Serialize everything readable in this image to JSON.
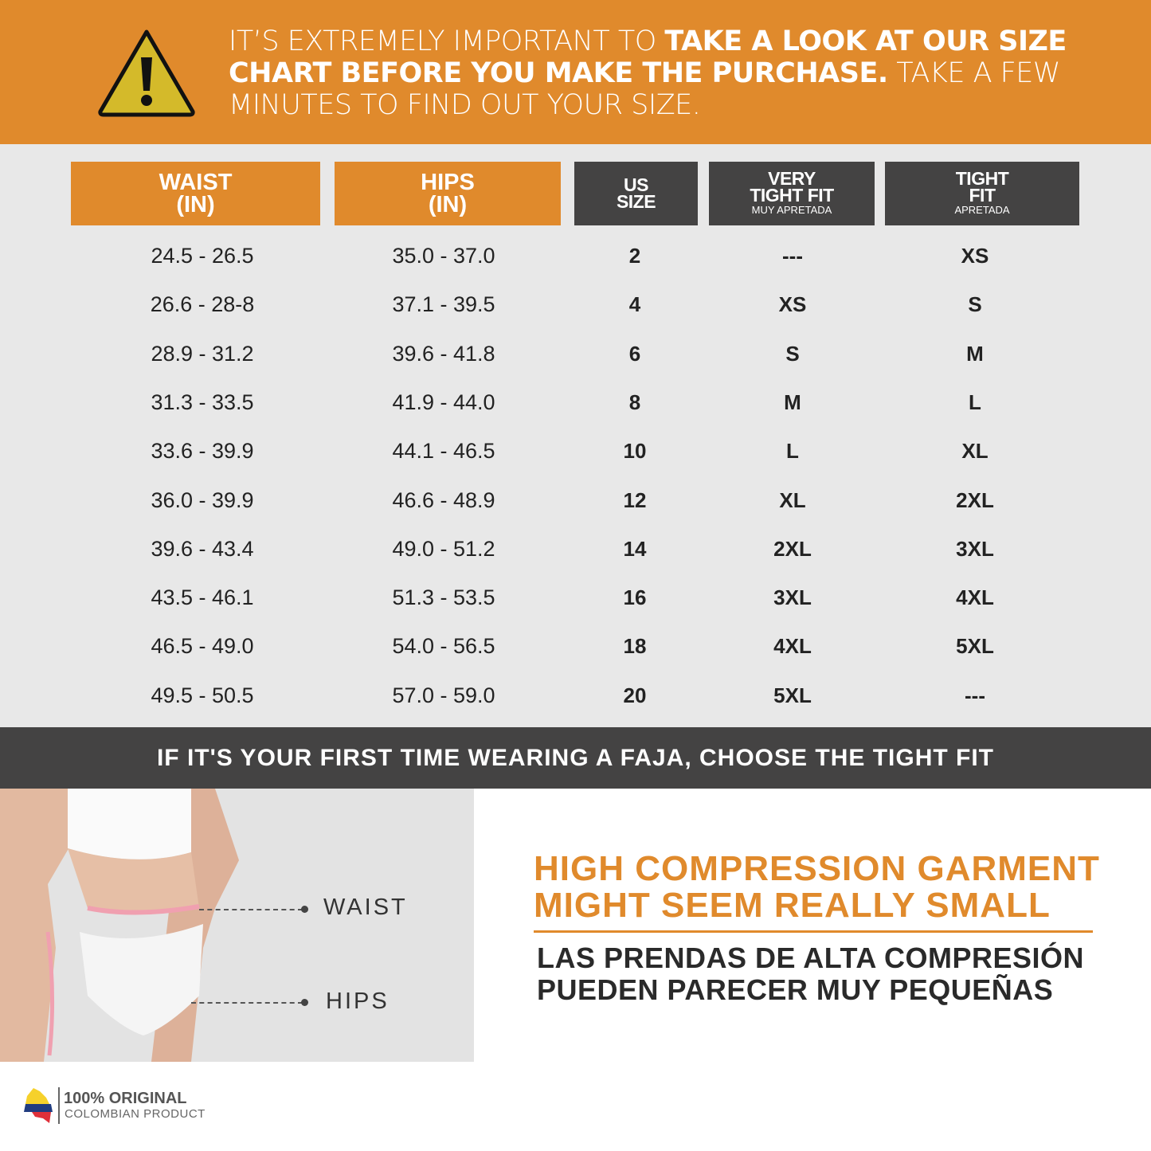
{
  "banner": {
    "text_light_1": "IT’S EXTREMELY IMPORTANT TO ",
    "text_bold": "TAKE A LOOK AT OUR SIZE CHART BEFORE YOU MAKE THE PURCHASE.",
    "text_light_2": " TAKE A FEW MINUTES TO FIND OUT YOUR SIZE.",
    "icon": "warning-triangle-icon"
  },
  "table": {
    "headers": [
      {
        "line1": "WAIST",
        "line2": "(IN)",
        "sub": ""
      },
      {
        "line1": "HIPS",
        "line2": "(IN)",
        "sub": ""
      },
      {
        "line1": "US",
        "line2": "SIZE",
        "sub": ""
      },
      {
        "line1": "VERY",
        "line2": "TIGHT FIT",
        "sub": "MUY APRETADA"
      },
      {
        "line1": "TIGHT",
        "line2": "FIT",
        "sub": "APRETADA"
      }
    ],
    "rows": [
      [
        "24.5 - 26.5",
        "35.0 - 37.0",
        "2",
        "---",
        "XS"
      ],
      [
        "26.6 - 28-8",
        "37.1 - 39.5",
        "4",
        "XS",
        "S"
      ],
      [
        "28.9 - 31.2",
        "39.6 - 41.8",
        "6",
        "S",
        "M"
      ],
      [
        "31.3 - 33.5",
        "41.9 - 44.0",
        "8",
        "M",
        "L"
      ],
      [
        "33.6 - 39.9",
        "44.1 - 46.5",
        "10",
        "L",
        "XL"
      ],
      [
        "36.0 - 39.9",
        "46.6 - 48.9",
        "12",
        "XL",
        "2XL"
      ],
      [
        "39.6 - 43.4",
        "49.0 - 51.2",
        "14",
        "2XL",
        "3XL"
      ],
      [
        "43.5 - 46.1",
        "51.3 - 53.5",
        "16",
        "3XL",
        "4XL"
      ],
      [
        "46.5 - 49.0",
        "54.0 - 56.5",
        "18",
        "4XL",
        "5XL"
      ],
      [
        "49.5 - 50.5",
        "57.0 - 59.0",
        "20",
        "5XL",
        "---"
      ]
    ]
  },
  "band": "IF IT'S YOUR FIRST TIME WEARING A FAJA, CHOOSE THE TIGHT FIT",
  "photo": {
    "waist_label": "WAIST",
    "hips_label": "HIPS"
  },
  "promo": {
    "en_line1": "HIGH COMPRESSION GARMENT",
    "en_line2": "MIGHT SEEM REALLY SMALL",
    "es_line1": "LAS PRENDAS DE ALTA COMPRESIÓN",
    "es_line2": "PUEDEN PARECER MUY PEQUEÑAS"
  },
  "logo": {
    "title": "100% ORIGINAL",
    "subtitle": "COLOMBIAN PRODUCT"
  },
  "colors": {
    "orange": "#E08A2C",
    "dark": "#444343",
    "table_bg": "#E8E8E8"
  }
}
